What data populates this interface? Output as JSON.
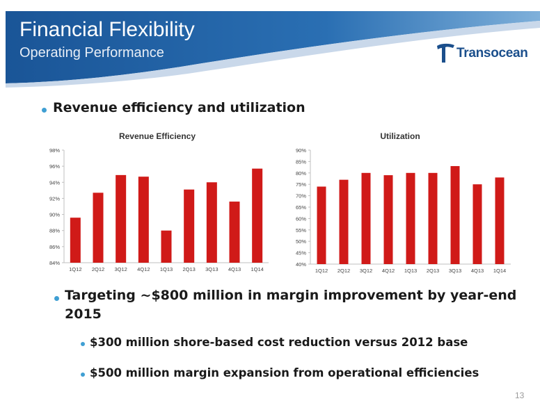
{
  "header": {
    "title": "Financial Flexibility",
    "subtitle": "Operating Performance",
    "logo_text": "Transocean"
  },
  "bullets": {
    "main1": "Revenue efficiency and utilization",
    "main2_line1": "Targeting ~$800 million in margin improvement by year-end",
    "main2_line2": "2015",
    "sub1": "$300 million shore-based cost reduction versus 2012 base",
    "sub2": "$500 million margin expansion from operational efficiencies"
  },
  "page_number": "13",
  "colors": {
    "bar": "#d01a18",
    "header_blue": "#1c5a9b",
    "bullet": "#3f9fd3",
    "logo": "#1b4f8c"
  },
  "chart_data": [
    {
      "type": "bar",
      "title": "Revenue Efficiency",
      "categories": [
        "1Q12",
        "2Q12",
        "3Q12",
        "4Q12",
        "1Q13",
        "2Q13",
        "3Q13",
        "4Q13",
        "1Q14"
      ],
      "values": [
        89.6,
        92.7,
        94.9,
        94.7,
        88.0,
        93.1,
        94.0,
        91.6,
        95.7
      ],
      "ylim": [
        84,
        98
      ],
      "yticks": [
        84,
        86,
        88,
        90,
        92,
        94,
        96,
        98
      ],
      "ytick_labels": [
        "84%",
        "86%",
        "88%",
        "90%",
        "92%",
        "94%",
        "96%",
        "98%"
      ],
      "grid": false
    },
    {
      "type": "bar",
      "title": "Utilization",
      "categories": [
        "1Q12",
        "2Q12",
        "3Q12",
        "4Q12",
        "1Q13",
        "2Q13",
        "3Q13",
        "4Q13",
        "1Q14"
      ],
      "values": [
        74,
        77,
        80,
        79,
        80,
        80,
        83,
        75,
        78
      ],
      "ylim": [
        40,
        90
      ],
      "yticks": [
        40,
        45,
        50,
        55,
        60,
        65,
        70,
        75,
        80,
        85,
        90
      ],
      "ytick_labels": [
        "40%",
        "45%",
        "50%",
        "55%",
        "60%",
        "65%",
        "70%",
        "75%",
        "80%",
        "85%",
        "90%"
      ],
      "grid": false
    }
  ]
}
